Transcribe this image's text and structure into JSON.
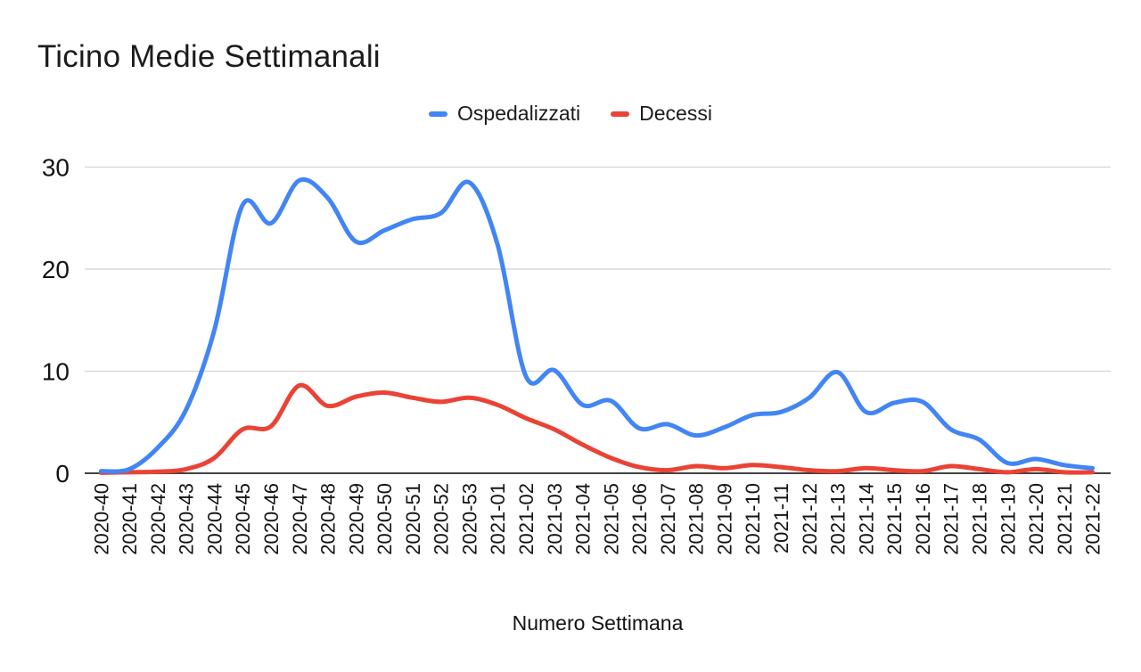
{
  "chart": {
    "title": "Ticino Medie Settimanali",
    "xlabel": "Numero Settimana"
  },
  "chart_data": {
    "type": "line",
    "smooth": true,
    "title": "Ticino Medie Settimanali",
    "xlabel": "Numero Settimana",
    "ylabel": "",
    "ylim": [
      0,
      30
    ],
    "yticks": [
      0,
      10,
      20,
      30
    ],
    "grid": "horizontal",
    "legend_position": "top-center",
    "axis_color": "#424242",
    "gridline_color": "#d9d9d9",
    "label_color": "#141414",
    "categories": [
      "2020-40",
      "2020-41",
      "2020-42",
      "2020-43",
      "2020-44",
      "2020-45",
      "2020-46",
      "2020-47",
      "2020-48",
      "2020-49",
      "2020-50",
      "2020-51",
      "2020-52",
      "2020-53",
      "2021-01",
      "2021-02",
      "2021-03",
      "2021-04",
      "2021-05",
      "2021-06",
      "2021-07",
      "2021-08",
      "2021-09",
      "2021-10",
      "2021-11",
      "2021-12",
      "2021-13",
      "2021-14",
      "2021-15",
      "2021-16",
      "2021-17",
      "2021-18",
      "2021-19",
      "2021-20",
      "2021-21",
      "2021-22"
    ],
    "series": [
      {
        "name": "Ospedalizzati",
        "color": "#4285F4",
        "values": [
          0.2,
          0.4,
          2.5,
          6.2,
          14,
          26.3,
          24.5,
          28.7,
          27,
          22.7,
          23.8,
          24.9,
          25.5,
          28.5,
          22.4,
          9.5,
          10.1,
          6.7,
          7.1,
          4.4,
          4.8,
          3.7,
          4.5,
          5.7,
          6.0,
          7.4,
          9.9,
          6.0,
          6.9,
          7.0,
          4.3,
          3.3,
          1.0,
          1.4,
          0.8,
          0.5
        ]
      },
      {
        "name": "Decessi",
        "color": "#EA4335",
        "values": [
          0.05,
          0.1,
          0.15,
          0.4,
          1.5,
          4.3,
          4.6,
          8.6,
          6.6,
          7.5,
          7.9,
          7.4,
          7.0,
          7.4,
          6.7,
          5.4,
          4.3,
          2.8,
          1.5,
          0.6,
          0.3,
          0.7,
          0.5,
          0.8,
          0.6,
          0.3,
          0.2,
          0.5,
          0.3,
          0.2,
          0.7,
          0.4,
          0.1,
          0.4,
          0.1,
          0.1
        ]
      }
    ]
  }
}
